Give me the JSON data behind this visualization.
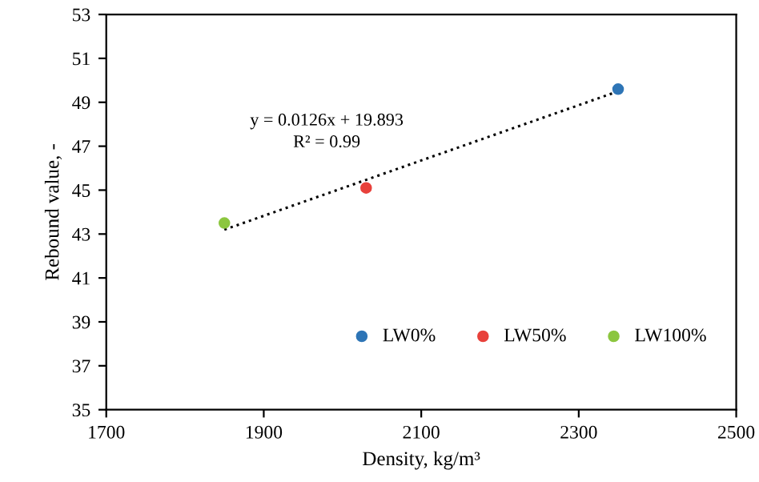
{
  "chart_data": {
    "type": "scatter",
    "xlabel": "Density, kg/m³",
    "ylabel": "Rebound value, -",
    "xlim": [
      1700,
      2500
    ],
    "xticks": [
      1700,
      1900,
      2100,
      2300,
      2500
    ],
    "ylim": [
      35,
      53
    ],
    "yticks": [
      35,
      37,
      39,
      41,
      43,
      45,
      47,
      49,
      51,
      53
    ],
    "grid": false,
    "legend": "bottom right",
    "series": [
      {
        "name": "LW0%",
        "color": "#2e75b6",
        "marker": "circle",
        "x": [
          2350
        ],
        "values": [
          49.6
        ]
      },
      {
        "name": "LW50%",
        "color": "#e8413b",
        "marker": "circle",
        "x": [
          2030
        ],
        "values": [
          45.1
        ]
      },
      {
        "name": "LW100%",
        "color": "#8cc63f",
        "marker": "circle",
        "x": [
          1850
        ],
        "values": [
          43.5
        ]
      },
      {
        "type": "line",
        "color": "#000000",
        "line_style": "dotted",
        "marker": "none",
        "x": [
          1850,
          2350
        ],
        "values": [
          43.2,
          49.5
        ]
      }
    ],
    "annotations": [
      "y = 0.0126x + 19.893",
      "R² = 0.99"
    ]
  }
}
